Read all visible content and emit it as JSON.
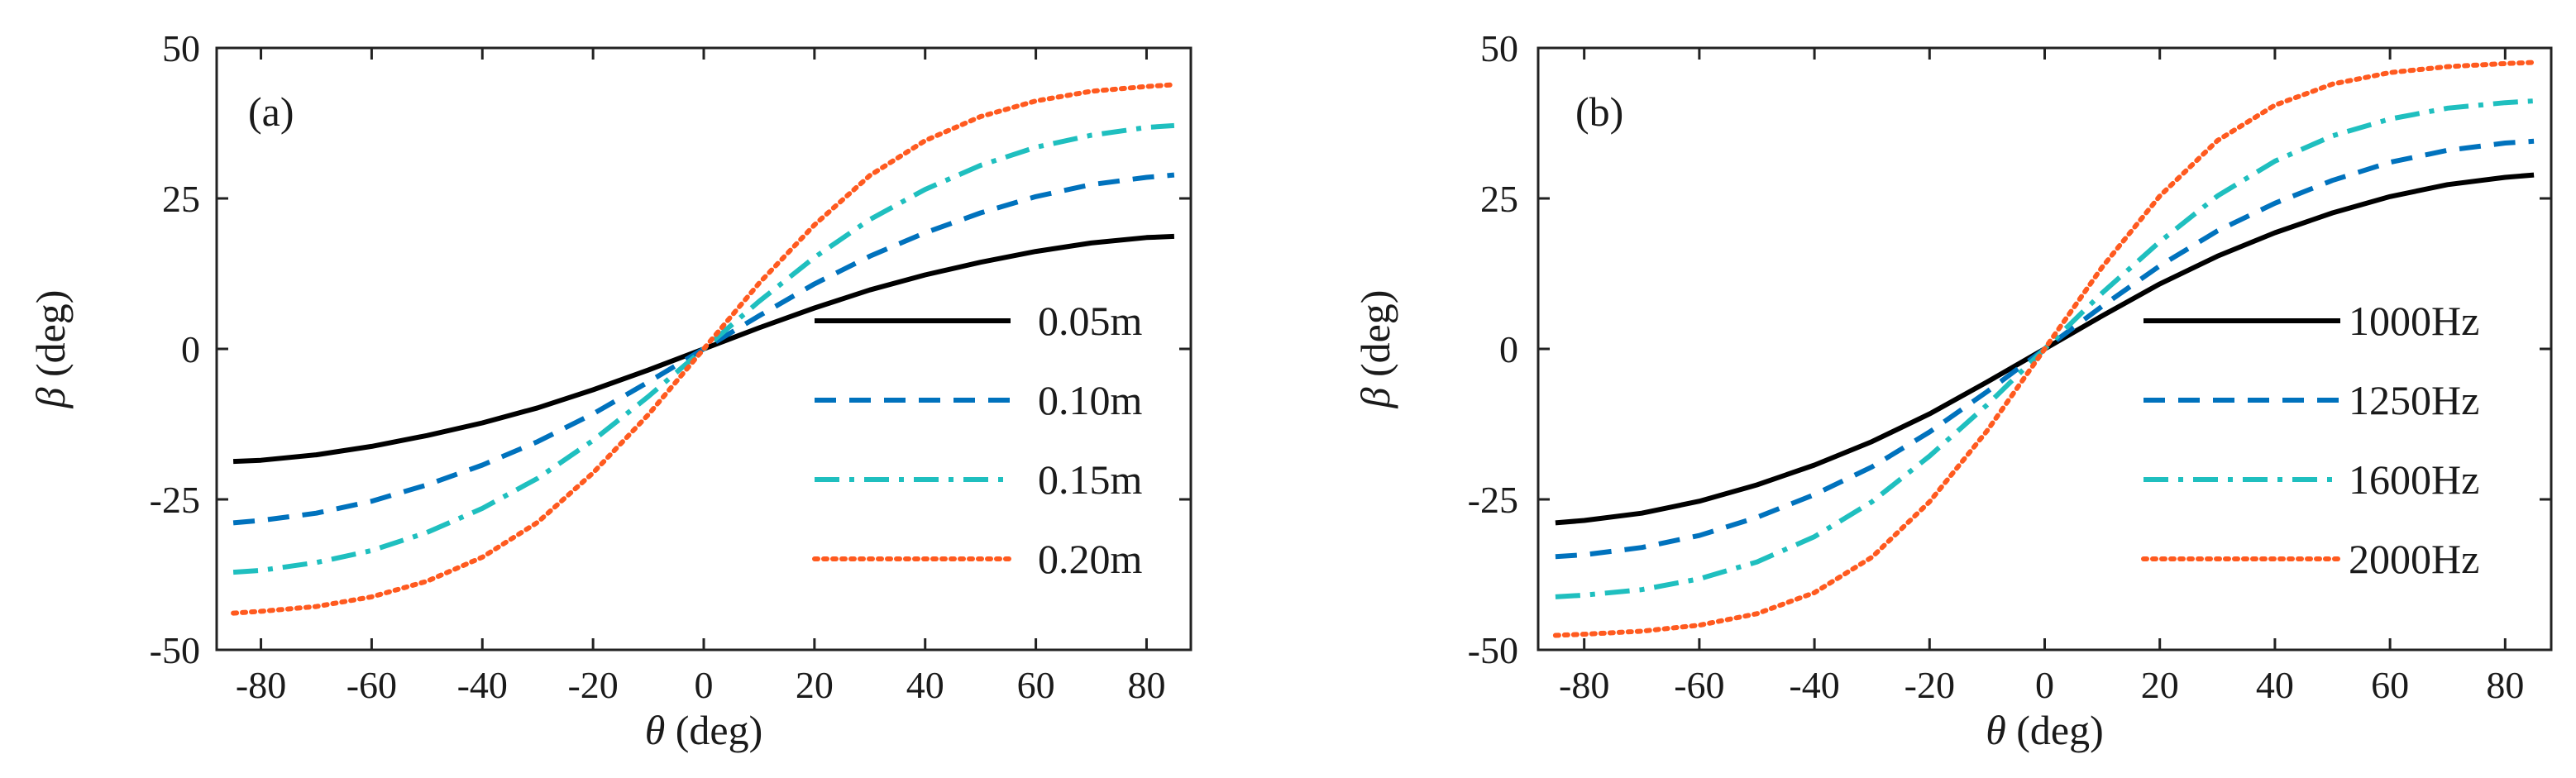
{
  "chart_data": [
    {
      "type": "line",
      "panel_label": "(a)",
      "xlabel_symbol": "θ",
      "xlabel_unit": " (deg)",
      "ylabel_symbol": "β",
      "ylabel_unit": " (deg)",
      "xlim": [
        -88,
        88
      ],
      "ylim": [
        -50,
        50
      ],
      "xticks": [
        -80,
        -60,
        -40,
        -20,
        0,
        20,
        40,
        60,
        80
      ],
      "yticks": [
        -50,
        -25,
        0,
        25,
        50
      ],
      "x": [
        -85,
        -80,
        -70,
        -60,
        -50,
        -40,
        -30,
        -20,
        -10,
        0,
        10,
        20,
        30,
        40,
        50,
        60,
        70,
        80,
        85
      ],
      "legend_position": "lower-right",
      "series": [
        {
          "name": "0.05m",
          "color": "#000000",
          "style": "solid",
          "values": [
            -18.7,
            -18.5,
            -17.6,
            -16.2,
            -14.4,
            -12.3,
            -9.8,
            -6.8,
            -3.5,
            0,
            3.5,
            6.8,
            9.8,
            12.3,
            14.4,
            16.2,
            17.6,
            18.5,
            18.7
          ]
        },
        {
          "name": "0.10m",
          "color": "#0072BD",
          "style": "dashed",
          "values": [
            -28.9,
            -28.5,
            -27.3,
            -25.3,
            -22.6,
            -19.3,
            -15.4,
            -10.8,
            -5.5,
            0,
            5.5,
            10.8,
            15.4,
            19.3,
            22.6,
            25.3,
            27.3,
            28.5,
            28.9
          ]
        },
        {
          "name": "0.15m",
          "color": "#1FBFBF",
          "style": "dashdot",
          "values": [
            -37.1,
            -36.8,
            -35.5,
            -33.5,
            -30.5,
            -26.5,
            -21.5,
            -15.2,
            -7.9,
            0,
            7.9,
            15.2,
            21.5,
            26.5,
            30.5,
            33.5,
            35.5,
            36.8,
            37.1
          ]
        },
        {
          "name": "0.20m",
          "color": "#FF5A1F",
          "style": "dotted",
          "values": [
            -43.9,
            -43.6,
            -42.8,
            -41.2,
            -38.6,
            -34.6,
            -28.8,
            -20.6,
            -10.9,
            0,
            10.9,
            20.6,
            28.8,
            34.6,
            38.6,
            41.2,
            42.8,
            43.6,
            43.9
          ]
        }
      ]
    },
    {
      "type": "line",
      "panel_label": "(b)",
      "xlabel_symbol": "θ",
      "xlabel_unit": " (deg)",
      "ylabel_symbol": "β",
      "ylabel_unit": " (deg)",
      "xlim": [
        -88,
        88
      ],
      "ylim": [
        -50,
        50
      ],
      "xticks": [
        -80,
        -60,
        -40,
        -20,
        0,
        20,
        40,
        60,
        80
      ],
      "yticks": [
        -50,
        -25,
        0,
        25,
        50
      ],
      "x": [
        -85,
        -80,
        -70,
        -60,
        -50,
        -40,
        -30,
        -20,
        -10,
        0,
        10,
        20,
        30,
        40,
        50,
        60,
        70,
        80,
        85
      ],
      "legend_position": "lower-right",
      "series": [
        {
          "name": "1000Hz",
          "color": "#000000",
          "style": "solid",
          "values": [
            -28.9,
            -28.5,
            -27.3,
            -25.3,
            -22.6,
            -19.3,
            -15.4,
            -10.8,
            -5.5,
            0,
            5.5,
            10.8,
            15.4,
            19.3,
            22.6,
            25.3,
            27.3,
            28.5,
            28.9
          ]
        },
        {
          "name": "1250Hz",
          "color": "#0072BD",
          "style": "dashed",
          "values": [
            -34.5,
            -34.2,
            -33.0,
            -31.0,
            -28.0,
            -24.2,
            -19.6,
            -13.8,
            -7.1,
            0,
            7.1,
            13.8,
            19.6,
            24.2,
            28.0,
            31.0,
            33.0,
            34.2,
            34.5
          ]
        },
        {
          "name": "1600Hz",
          "color": "#1FBFBF",
          "style": "dashdot",
          "values": [
            -41.2,
            -40.9,
            -40.0,
            -38.2,
            -35.4,
            -31.2,
            -25.4,
            -17.8,
            -9.3,
            0,
            9.3,
            17.8,
            25.4,
            31.2,
            35.4,
            38.2,
            40.0,
            40.9,
            41.2
          ]
        },
        {
          "name": "2000Hz",
          "color": "#FF5A1F",
          "style": "dotted",
          "values": [
            -47.6,
            -47.4,
            -46.9,
            -45.9,
            -44.0,
            -40.5,
            -34.6,
            -25.4,
            -13.6,
            0,
            13.6,
            25.4,
            34.6,
            40.5,
            44.0,
            45.9,
            46.9,
            47.4,
            47.6
          ]
        }
      ]
    }
  ]
}
